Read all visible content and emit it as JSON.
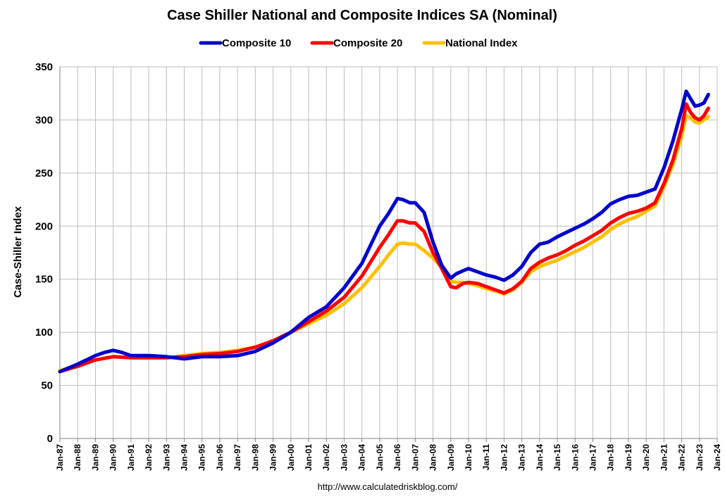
{
  "chart_data": {
    "type": "line",
    "title": "Case Shiller National and Composite Indices SA (Nominal)",
    "ylabel": "Case-Shiller Index",
    "xlabel": "",
    "source": "http://www.calculatedriskblog.com/",
    "ylim": [
      0,
      350
    ],
    "yticks": [
      0,
      50,
      100,
      150,
      200,
      250,
      300,
      350
    ],
    "xlim": [
      1987,
      2024
    ],
    "xticks": [
      "Jan-87",
      "Jan-88",
      "Jan-89",
      "Jan-90",
      "Jan-91",
      "Jan-92",
      "Jan-93",
      "Jan-94",
      "Jan-95",
      "Jan-96",
      "Jan-97",
      "Jan-98",
      "Jan-99",
      "Jan-00",
      "Jan-01",
      "Jan-02",
      "Jan-03",
      "Jan-04",
      "Jan-05",
      "Jan-06",
      "Jan-07",
      "Jan-08",
      "Jan-09",
      "Jan-10",
      "Jan-11",
      "Jan-12",
      "Jan-13",
      "Jan-14",
      "Jan-15",
      "Jan-16",
      "Jan-17",
      "Jan-18",
      "Jan-19",
      "Jan-20",
      "Jan-21",
      "Jan-22",
      "Jan-23",
      "Jan-24"
    ],
    "grid": true,
    "legend_position": "top-center",
    "series": [
      {
        "name": "Composite 10",
        "color": "#0000cc",
        "x": [
          1987.0,
          1988.0,
          1989.0,
          1989.5,
          1990.0,
          1990.5,
          1991.0,
          1992.0,
          1993.0,
          1994.0,
          1995.0,
          1996.0,
          1997.0,
          1998.0,
          1999.0,
          2000.0,
          2001.0,
          2002.0,
          2003.0,
          2004.0,
          2005.0,
          2005.5,
          2006.0,
          2006.3,
          2006.7,
          2007.0,
          2007.5,
          2008.0,
          2008.5,
          2009.0,
          2009.3,
          2009.7,
          2010.0,
          2010.5,
          2011.0,
          2011.5,
          2012.0,
          2012.5,
          2013.0,
          2013.5,
          2014.0,
          2014.5,
          2015.0,
          2015.5,
          2016.0,
          2016.5,
          2017.0,
          2017.5,
          2018.0,
          2018.5,
          2019.0,
          2019.5,
          2020.0,
          2020.5,
          2021.0,
          2021.5,
          2022.0,
          2022.25,
          2022.5,
          2022.75,
          2023.0,
          2023.25,
          2023.5
        ],
        "values": [
          63,
          70,
          78,
          81,
          83,
          81,
          78,
          78,
          77,
          75,
          77,
          77,
          78,
          82,
          90,
          100,
          114,
          124,
          142,
          165,
          200,
          212,
          226,
          225,
          222,
          222,
          213,
          185,
          163,
          151,
          155,
          158,
          160,
          157,
          154,
          152,
          149,
          154,
          162,
          175,
          183,
          185,
          190,
          194,
          198,
          202,
          207,
          213,
          221,
          225,
          228,
          229,
          232,
          235,
          255,
          280,
          310,
          327,
          320,
          313,
          314,
          316,
          324
        ]
      },
      {
        "name": "Composite 20",
        "color": "#ff0000",
        "x": [
          1987.0,
          1988.0,
          1989.0,
          1990.0,
          1991.0,
          1992.0,
          1993.0,
          1994.0,
          1995.0,
          1996.0,
          1997.0,
          1998.0,
          1999.0,
          2000.0,
          2001.0,
          2002.0,
          2003.0,
          2004.0,
          2005.0,
          2005.5,
          2006.0,
          2006.3,
          2006.7,
          2007.0,
          2007.5,
          2008.0,
          2008.5,
          2009.0,
          2009.3,
          2009.7,
          2010.0,
          2010.5,
          2011.0,
          2011.5,
          2012.0,
          2012.5,
          2013.0,
          2013.5,
          2014.0,
          2014.5,
          2015.0,
          2015.5,
          2016.0,
          2016.5,
          2017.0,
          2017.5,
          2018.0,
          2018.5,
          2019.0,
          2019.5,
          2020.0,
          2020.5,
          2021.0,
          2021.5,
          2022.0,
          2022.25,
          2022.5,
          2022.75,
          2023.0,
          2023.25,
          2023.5
        ],
        "values": [
          63,
          68,
          74,
          77,
          76,
          76,
          76,
          77,
          79,
          80,
          82,
          86,
          92,
          100,
          110,
          120,
          133,
          153,
          180,
          192,
          205,
          205,
          203,
          203,
          195,
          175,
          160,
          143,
          142,
          146,
          147,
          146,
          143,
          140,
          137,
          141,
          148,
          160,
          166,
          170,
          173,
          177,
          182,
          186,
          191,
          196,
          203,
          208,
          212,
          214,
          217,
          222,
          240,
          262,
          292,
          315,
          307,
          302,
          300,
          304,
          311
        ]
      },
      {
        "name": "National Index",
        "color": "#ffc000",
        "x": [
          1987.0,
          1988.0,
          1989.0,
          1990.0,
          1991.0,
          1992.0,
          1993.0,
          1994.0,
          1995.0,
          1996.0,
          1997.0,
          1998.0,
          1999.0,
          2000.0,
          2001.0,
          2002.0,
          2003.0,
          2004.0,
          2005.0,
          2005.5,
          2006.0,
          2006.3,
          2006.7,
          2007.0,
          2007.5,
          2008.0,
          2008.5,
          2009.0,
          2009.3,
          2009.7,
          2010.0,
          2010.5,
          2011.0,
          2011.5,
          2012.0,
          2012.5,
          2013.0,
          2013.5,
          2014.0,
          2014.5,
          2015.0,
          2015.5,
          2016.0,
          2016.5,
          2017.0,
          2017.5,
          2018.0,
          2018.5,
          2019.0,
          2019.5,
          2020.0,
          2020.5,
          2021.0,
          2021.5,
          2022.0,
          2022.25,
          2022.5,
          2022.75,
          2023.0,
          2023.25,
          2023.5
        ],
        "values": [
          64,
          69,
          74,
          77,
          76,
          76,
          76,
          78,
          80,
          81,
          83,
          86,
          92,
          100,
          108,
          116,
          127,
          142,
          162,
          173,
          183,
          184,
          183,
          183,
          177,
          170,
          161,
          148,
          147,
          147,
          146,
          144,
          141,
          139,
          136,
          140,
          147,
          157,
          162,
          165,
          168,
          172,
          176,
          180,
          185,
          190,
          197,
          202,
          206,
          209,
          214,
          219,
          237,
          258,
          285,
          304,
          302,
          298,
          297,
          300,
          303
        ]
      }
    ]
  }
}
